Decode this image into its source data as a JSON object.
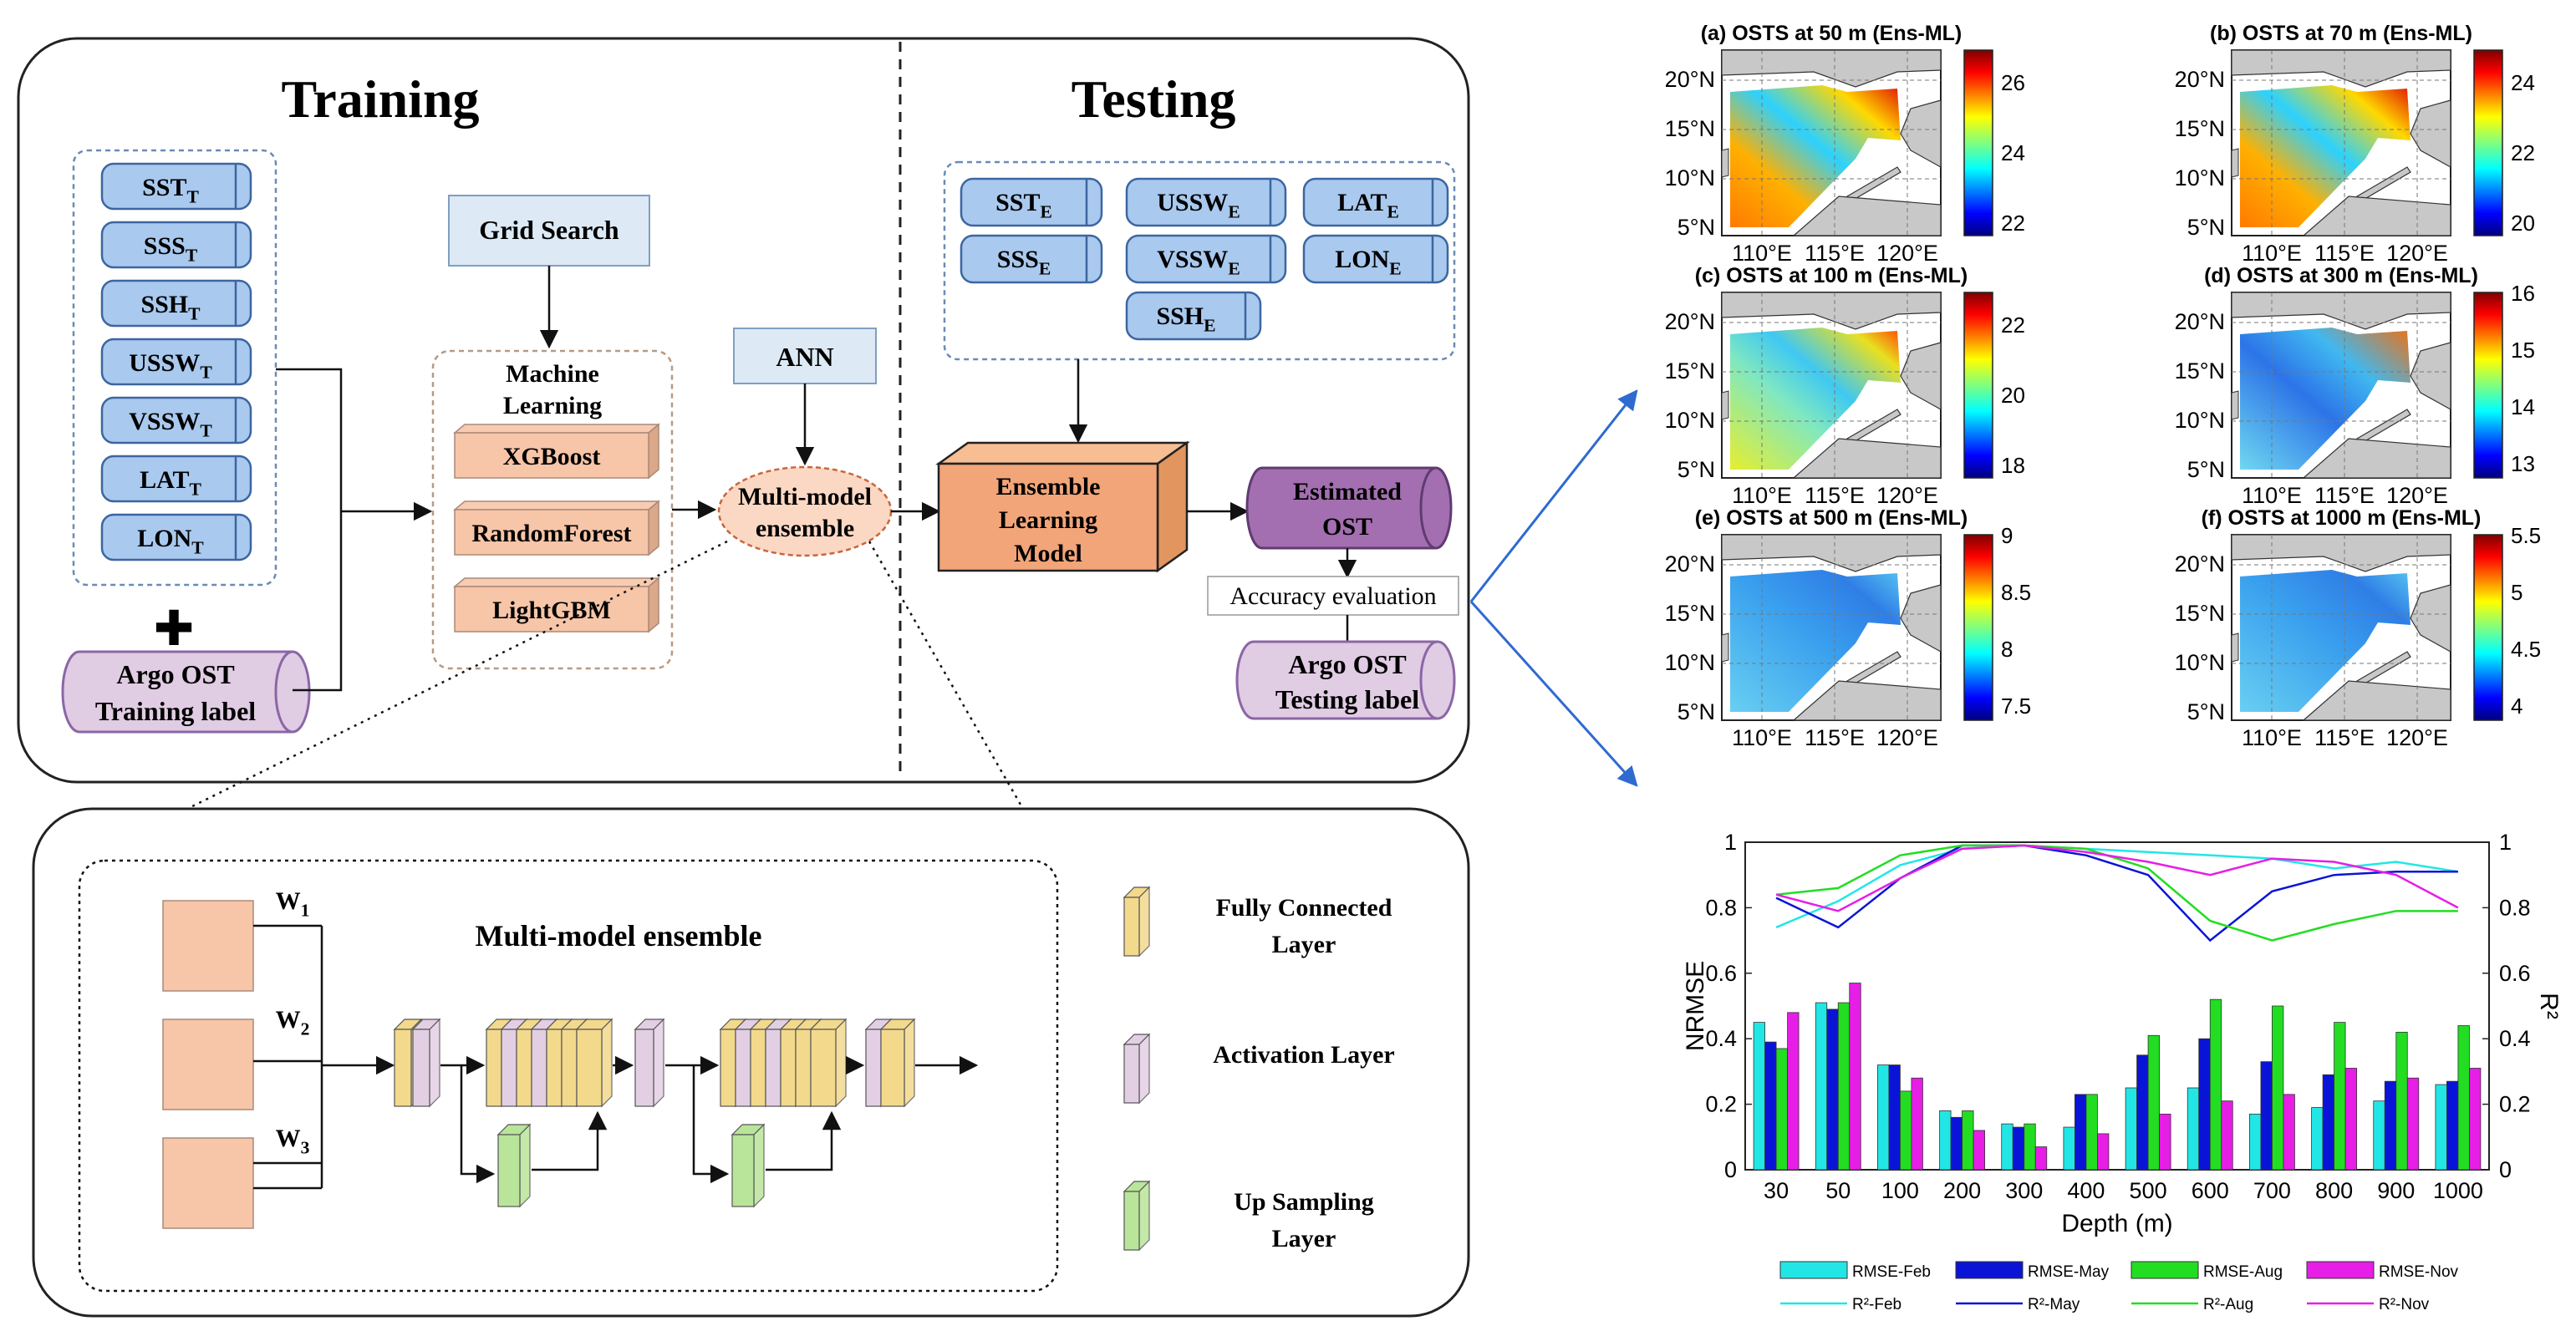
{
  "training": {
    "title": "Training",
    "inputs": [
      {
        "base": "SST",
        "sub": "T"
      },
      {
        "base": "SSS",
        "sub": "T"
      },
      {
        "base": "SSH",
        "sub": "T"
      },
      {
        "base": "USSW",
        "sub": "T"
      },
      {
        "base": "VSSW",
        "sub": "T"
      },
      {
        "base": "LAT",
        "sub": "T"
      },
      {
        "base": "LON",
        "sub": "T"
      }
    ],
    "plus": "✚",
    "label_line1": "Argo OST",
    "label_line2": "Training label",
    "grid_search": "Grid Search",
    "ml_title_line1": "Machine",
    "ml_title_line2": "Learning",
    "models": [
      "XGBoost",
      "RandomForest",
      "LightGBM"
    ],
    "ann": "ANN",
    "ensemble_line1": "Multi-model",
    "ensemble_line2": "ensemble"
  },
  "testing": {
    "title": "Testing",
    "inputs": [
      {
        "base": "SST",
        "sub": "E"
      },
      {
        "base": "USSW",
        "sub": "E"
      },
      {
        "base": "LAT",
        "sub": "E"
      },
      {
        "base": "SSS",
        "sub": "E"
      },
      {
        "base": "VSSW",
        "sub": "E"
      },
      {
        "base": "LON",
        "sub": "E"
      },
      {
        "base": "SSH",
        "sub": "E"
      }
    ],
    "ensemble_model": [
      "Ensemble",
      "Learning",
      "Model"
    ],
    "estimated_line1": "Estimated",
    "estimated_line2": "OST",
    "accuracy": "Accuracy evaluation",
    "testing_label_line1": "Argo OST",
    "testing_label_line2": "Testing label"
  },
  "detail": {
    "title": "Multi-model ensemble",
    "weights": [
      {
        "base": "W",
        "sub": "1"
      },
      {
        "base": "W",
        "sub": "2"
      },
      {
        "base": "W",
        "sub": "3"
      }
    ],
    "legend": [
      {
        "line1": "Fully Connected",
        "line2": "Layer",
        "color": "#f3d98c"
      },
      {
        "line1": "Activation Layer",
        "line2": "",
        "color": "#e3cfe3"
      },
      {
        "line1": "Up Sampling",
        "line2": "Layer",
        "color": "#b9e59a"
      }
    ]
  },
  "maps": {
    "x_ticks": [
      "110°E",
      "115°E",
      "120°E"
    ],
    "y_ticks": [
      "20°N",
      "15°N",
      "10°N",
      "5°N"
    ],
    "panels": [
      {
        "title": "(a) OSTS at 50 m (Ens-ML)",
        "cbar": [
          "26",
          "24",
          "22"
        ],
        "pattern": "warm"
      },
      {
        "title": "(b) OSTS at 70 m (Ens-ML)",
        "cbar": [
          "24",
          "22",
          "20"
        ],
        "pattern": "warm"
      },
      {
        "title": "(c) OSTS at 100 m (Ens-ML)",
        "cbar": [
          "22",
          "20",
          "18"
        ],
        "pattern": "mid"
      },
      {
        "title": "(d) OSTS at 300 m (Ens-ML)",
        "cbar": [
          "16",
          "15",
          "14",
          "13"
        ],
        "pattern": "cool"
      },
      {
        "title": "(e) OSTS at 500 m (Ens-ML)",
        "cbar": [
          "9",
          "8.5",
          "8",
          "7.5"
        ],
        "pattern": "cool2"
      },
      {
        "title": "(f) OSTS at 1000 m (Ens-ML)",
        "cbar": [
          "5.5",
          "5",
          "4.5",
          "4"
        ],
        "pattern": "cool2"
      }
    ]
  },
  "chart_data": {
    "type": "bar",
    "xlabel": "Depth (m)",
    "ylabel": "NRMSE",
    "y2label": "R²",
    "categories": [
      "30",
      "50",
      "100",
      "200",
      "300",
      "400",
      "500",
      "600",
      "700",
      "800",
      "900",
      "1000"
    ],
    "ylim": [
      0,
      1
    ],
    "yticks": [
      "0",
      "0.2",
      "0.4",
      "0.6",
      "0.8",
      "1"
    ],
    "series": [
      {
        "name": "RMSE-Feb",
        "kind": "bar",
        "color": "#22e6e6",
        "values": [
          0.45,
          0.51,
          0.32,
          0.18,
          0.14,
          0.13,
          0.25,
          0.25,
          0.17,
          0.19,
          0.21,
          0.26
        ]
      },
      {
        "name": "RMSE-May",
        "kind": "bar",
        "color": "#0a14d6",
        "values": [
          0.39,
          0.49,
          0.32,
          0.16,
          0.13,
          0.23,
          0.35,
          0.4,
          0.33,
          0.29,
          0.27,
          0.27
        ]
      },
      {
        "name": "RMSE-Aug",
        "kind": "bar",
        "color": "#22dd22",
        "values": [
          0.37,
          0.51,
          0.24,
          0.18,
          0.14,
          0.23,
          0.41,
          0.52,
          0.5,
          0.45,
          0.42,
          0.44
        ]
      },
      {
        "name": "RMSE-Nov",
        "kind": "bar",
        "color": "#e61ee6",
        "values": [
          0.48,
          0.57,
          0.28,
          0.12,
          0.07,
          0.11,
          0.17,
          0.21,
          0.23,
          0.31,
          0.28,
          0.31
        ]
      }
    ],
    "lines": [
      {
        "name": "R²-Feb",
        "color": "#22e6e6",
        "values": [
          0.74,
          0.82,
          0.93,
          0.98,
          0.99,
          0.98,
          0.97,
          0.96,
          0.95,
          0.92,
          0.94,
          0.91
        ]
      },
      {
        "name": "R²-May",
        "color": "#0a14d6",
        "values": [
          0.83,
          0.74,
          0.89,
          0.99,
          0.99,
          0.96,
          0.9,
          0.7,
          0.85,
          0.9,
          0.91,
          0.91
        ]
      },
      {
        "name": "R²-Aug",
        "color": "#22dd22",
        "values": [
          0.84,
          0.86,
          0.96,
          0.99,
          0.99,
          0.98,
          0.92,
          0.76,
          0.7,
          0.75,
          0.79,
          0.79
        ]
      },
      {
        "name": "R²-Nov",
        "color": "#e61ee6",
        "values": [
          0.84,
          0.79,
          0.89,
          0.98,
          0.99,
          0.97,
          0.94,
          0.9,
          0.95,
          0.94,
          0.9,
          0.8
        ]
      }
    ]
  }
}
